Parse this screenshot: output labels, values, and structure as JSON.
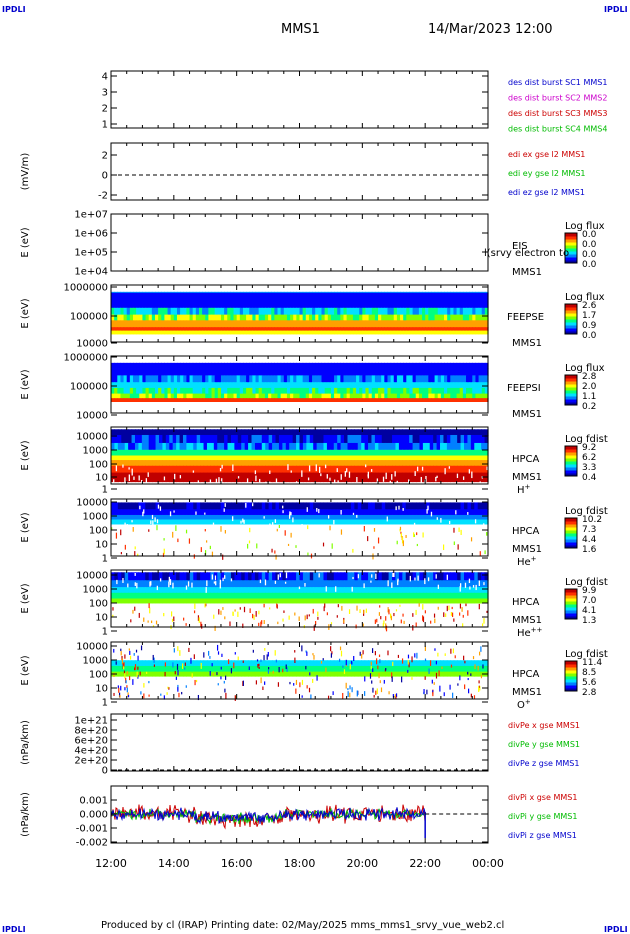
{
  "corners": {
    "tl": "IPDLI",
    "tr": "IPDLI",
    "bl": "IPDLI",
    "br": "IPDLI"
  },
  "header": {
    "spacecraft": "MMS1",
    "datetime": "14/Mar/2023 12:00"
  },
  "footer": "Produced by cl (IRAP)    Printing date: 02/May/2025    mms_mms1_srvy_vue_web2.cl",
  "chart_data": [
    {
      "type": "line",
      "panel": "des_dist_burst",
      "ylim": [
        0.5,
        4.5
      ],
      "yticks": [
        "4",
        "3",
        "2",
        "1"
      ],
      "legend": [
        {
          "text": "des dist burst SC1 MMS1",
          "color": "#0000cc"
        },
        {
          "text": "des dist burst SC2 MMS2",
          "color": "#cc00cc"
        },
        {
          "text": "des dist burst SC3 MMS3",
          "color": "#cc0000"
        },
        {
          "text": "des dist burst SC4 MMS4",
          "color": "#00bb00"
        }
      ]
    },
    {
      "type": "line",
      "panel": "edi_e",
      "ylabel": "(mV/m)",
      "ylim": [
        -3,
        3
      ],
      "yticks": [
        "2",
        "0",
        "-2"
      ],
      "zero_line": true,
      "legend": [
        {
          "text": "edi ex gse l2 MMS1",
          "color": "#cc0000"
        },
        {
          "text": "edi ey gse l2 MMS1",
          "color": "#00bb00"
        },
        {
          "text": "edi ez gse l2 MMS1",
          "color": "#0000cc"
        }
      ]
    },
    {
      "type": "heatmap",
      "panel": "EIS",
      "ylabel": "E (eV)",
      "yticks": [
        "1e+07",
        "1e+06",
        "1e+05",
        "1e+04"
      ],
      "label": "EIS",
      "overlay_text": "l(srvy electron to",
      "sc": "MMS1",
      "cbar_title": "Log flux",
      "cbar_ticks": [
        "0.0",
        "0.0",
        "0.0",
        "0.0"
      ]
    },
    {
      "type": "heatmap",
      "panel": "FEEPSE",
      "ylabel": "E (eV)",
      "yticks": [
        "1000000",
        "100000",
        "10000"
      ],
      "label": "FEEPSE",
      "sc": "MMS1",
      "cbar_title": "Log flux",
      "cbar_ticks": [
        "2.6",
        "1.7",
        "0.9",
        "0.0"
      ]
    },
    {
      "type": "heatmap",
      "panel": "FEEPSI",
      "ylabel": "E (eV)",
      "yticks": [
        "1000000",
        "100000",
        "10000"
      ],
      "label": "FEEPSI",
      "sc": "MMS1",
      "cbar_title": "Log flux",
      "cbar_ticks": [
        "2.8",
        "2.0",
        "1.1",
        "0.2"
      ]
    },
    {
      "type": "heatmap",
      "panel": "HPCA_H",
      "ylabel": "E (eV)",
      "yticks": [
        "10000",
        "1000",
        "100",
        "10",
        "1"
      ],
      "label": "HPCA",
      "sc": "MMS1",
      "species": "H",
      "species_sup": "+",
      "cbar_title": "Log fdist",
      "cbar_ticks": [
        "9.2",
        "6.2",
        "3.3",
        "0.4"
      ]
    },
    {
      "type": "heatmap",
      "panel": "HPCA_He",
      "ylabel": "E (eV)",
      "yticks": [
        "10000",
        "1000",
        "100",
        "10",
        "1"
      ],
      "label": "HPCA",
      "sc": "MMS1",
      "species": "He",
      "species_sup": "+",
      "cbar_title": "Log fdist",
      "cbar_ticks": [
        "10.2",
        "7.3",
        "4.4",
        "1.6"
      ]
    },
    {
      "type": "heatmap",
      "panel": "HPCA_He2",
      "ylabel": "E (eV)",
      "yticks": [
        "10000",
        "1000",
        "100",
        "10",
        "1"
      ],
      "label": "HPCA",
      "sc": "MMS1",
      "species": "He",
      "species_sup": "++",
      "cbar_title": "Log fdist",
      "cbar_ticks": [
        "9.9",
        "7.0",
        "4.1",
        "1.3"
      ]
    },
    {
      "type": "heatmap",
      "panel": "HPCA_O",
      "ylabel": "E (eV)",
      "yticks": [
        "10000",
        "1000",
        "100",
        "10",
        "1"
      ],
      "label": "HPCA",
      "sc": "MMS1",
      "species": "O",
      "species_sup": "+",
      "cbar_title": "Log fdist",
      "cbar_ticks": [
        "11.4",
        "8.5",
        "5.6",
        "2.8"
      ]
    },
    {
      "type": "line",
      "panel": "divPe",
      "ylabel": "(nPa/km)",
      "yticks": [
        "1e+21",
        "8e+20",
        "6e+20",
        "4e+20",
        "2e+20",
        "0"
      ],
      "zero_line": true,
      "legend": [
        {
          "text": "divPe x gse MMS1",
          "color": "#cc0000"
        },
        {
          "text": "divPe y gse MMS1",
          "color": "#00bb00"
        },
        {
          "text": "divPe z gse MMS1",
          "color": "#0000cc"
        }
      ]
    },
    {
      "type": "line",
      "panel": "divPi",
      "ylabel": "(nPa/km)",
      "ylim": [
        -0.0025,
        0.0015
      ],
      "yticks": [
        "0.001",
        "0.000",
        "-0.001",
        "-0.002"
      ],
      "zero_line": true,
      "legend": [
        {
          "text": "divPi x gse MMS1",
          "color": "#cc0000"
        },
        {
          "text": "divPi y gse MMS1",
          "color": "#00bb00"
        },
        {
          "text": "divPi z gse MMS1",
          "color": "#0000cc"
        }
      ],
      "data_end": "22:00"
    }
  ],
  "xaxis": {
    "ticks": [
      "12:00",
      "14:00",
      "16:00",
      "18:00",
      "20:00",
      "22:00",
      "00:00"
    ]
  },
  "colormap": [
    "#0000a0",
    "#0000ff",
    "#0080ff",
    "#00e0ff",
    "#00ff80",
    "#80ff00",
    "#ffff00",
    "#ffa000",
    "#ff3000",
    "#c00000"
  ]
}
